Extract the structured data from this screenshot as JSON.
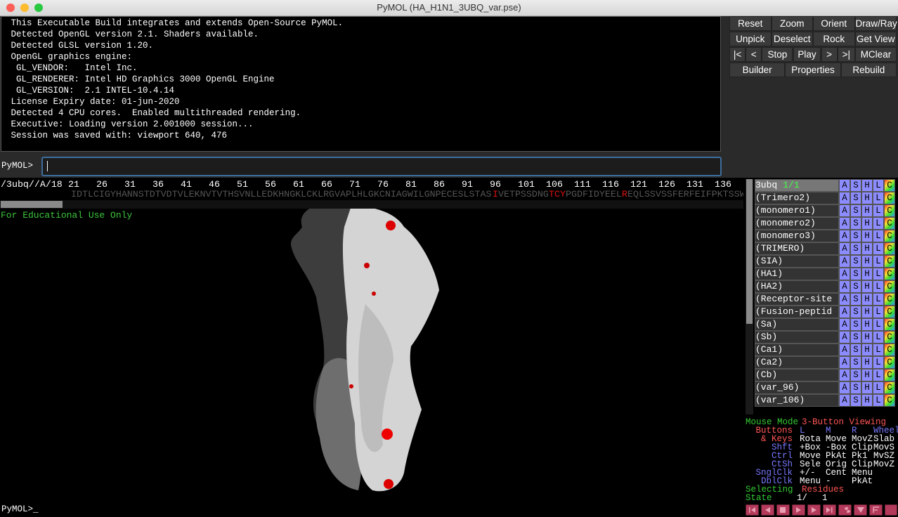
{
  "window": {
    "title": "PyMOL (HA_H1N1_3UBQ_var.pse)"
  },
  "console": {
    "lines": [
      " This Executable Build integrates and extends Open-Source PyMOL.",
      " Detected OpenGL version 2.1. Shaders available.",
      " Detected GLSL version 1.20.",
      " OpenGL graphics engine:",
      "  GL_VENDOR:   Intel Inc.",
      "  GL_RENDERER: Intel HD Graphics 3000 OpenGL Engine",
      "  GL_VERSION:  2.1 INTEL-10.4.14",
      " License Expiry date: 01-jun-2020",
      " Detected 4 CPU cores.  Enabled multithreaded rendering.",
      " Executive: Loading version 2.001000 session...",
      " Session was saved with: viewport 640, 476"
    ],
    "prompt": "PyMOL>"
  },
  "buttons": [
    [
      "Reset",
      "Zoom",
      "Orient",
      "Draw/Ray"
    ],
    [
      "Unpick",
      "Deselect",
      "Rock",
      "Get View"
    ],
    [
      "|<",
      "<",
      "Stop",
      "Play",
      ">",
      ">|",
      "MClear"
    ],
    [
      "Builder",
      "Properties",
      "Rebuild"
    ]
  ],
  "sequence": {
    "chain": "/3ubq//A/18",
    "residue_numbers": [
      21,
      26,
      31,
      36,
      41,
      46,
      51,
      56,
      61,
      66,
      71,
      76,
      81,
      86,
      91,
      96,
      101,
      106,
      111,
      116,
      121,
      126,
      131,
      136
    ],
    "segments": [
      {
        "text": "IDTLCIGYHANNSTDTVDTVLEKNVTVTHSVNLLEDKHNGKLCKLRGVAPLHLGKCNIAGWILGNPECESLSTAS",
        "highlight": false
      },
      {
        "text": "I",
        "highlight": true
      },
      {
        "text": "VETPSSDNG",
        "highlight": false
      },
      {
        "text": "TCY",
        "highlight": true
      },
      {
        "text": "PGDFIDYEEL",
        "highlight": false
      },
      {
        "text": "R",
        "highlight": true
      },
      {
        "text": "EQLSSVSSFERFEIFPKTSSW",
        "highlight": false
      }
    ]
  },
  "viewer": {
    "notice": "For Educational Use Only",
    "prompt": "PyMOL>_"
  },
  "objects": {
    "toggles": [
      "A",
      "S",
      "H",
      "L",
      "C"
    ],
    "items": [
      {
        "name": "3ubq",
        "state": "1/1"
      },
      {
        "name": "(Trimero2)"
      },
      {
        "name": "(monomero1)"
      },
      {
        "name": "(monomero2)"
      },
      {
        "name": "(monomero3)"
      },
      {
        "name": "(TRIMERO)"
      },
      {
        "name": "(SIA)"
      },
      {
        "name": "(HA1)"
      },
      {
        "name": "(HA2)"
      },
      {
        "name": "(Receptor-site"
      },
      {
        "name": "(Fusion-peptid"
      },
      {
        "name": "(Sa)"
      },
      {
        "name": "(Sb)"
      },
      {
        "name": "(Ca1)"
      },
      {
        "name": "(Ca2)"
      },
      {
        "name": "(Cb)"
      },
      {
        "name": "(var_96)"
      },
      {
        "name": "(var_106)"
      }
    ]
  },
  "mouse_mode": {
    "title": "Mouse Mode",
    "mode": "3-Button Viewing",
    "rows": [
      [
        "Buttons",
        "L",
        "M",
        "R",
        "Wheel"
      ],
      [
        "& Keys",
        "Rota",
        "Move",
        "MovZ",
        "Slab"
      ],
      [
        "Shft",
        "+Box",
        "-Box",
        "Clip",
        "MovS"
      ],
      [
        "Ctrl",
        "Move",
        "PkAt",
        "Pk1",
        "MvSZ"
      ],
      [
        "CtSh",
        "Sele",
        "Orig",
        "Clip",
        "MovZ"
      ],
      [
        "SnglClk",
        "+/-",
        "Cent",
        "Menu"
      ],
      [
        "DblClk",
        "Menu",
        "-",
        "PkAt"
      ]
    ],
    "selecting_label": "Selecting",
    "selecting_value": "Residues",
    "state_label": "State",
    "state_current": "1/",
    "state_total": "1"
  }
}
